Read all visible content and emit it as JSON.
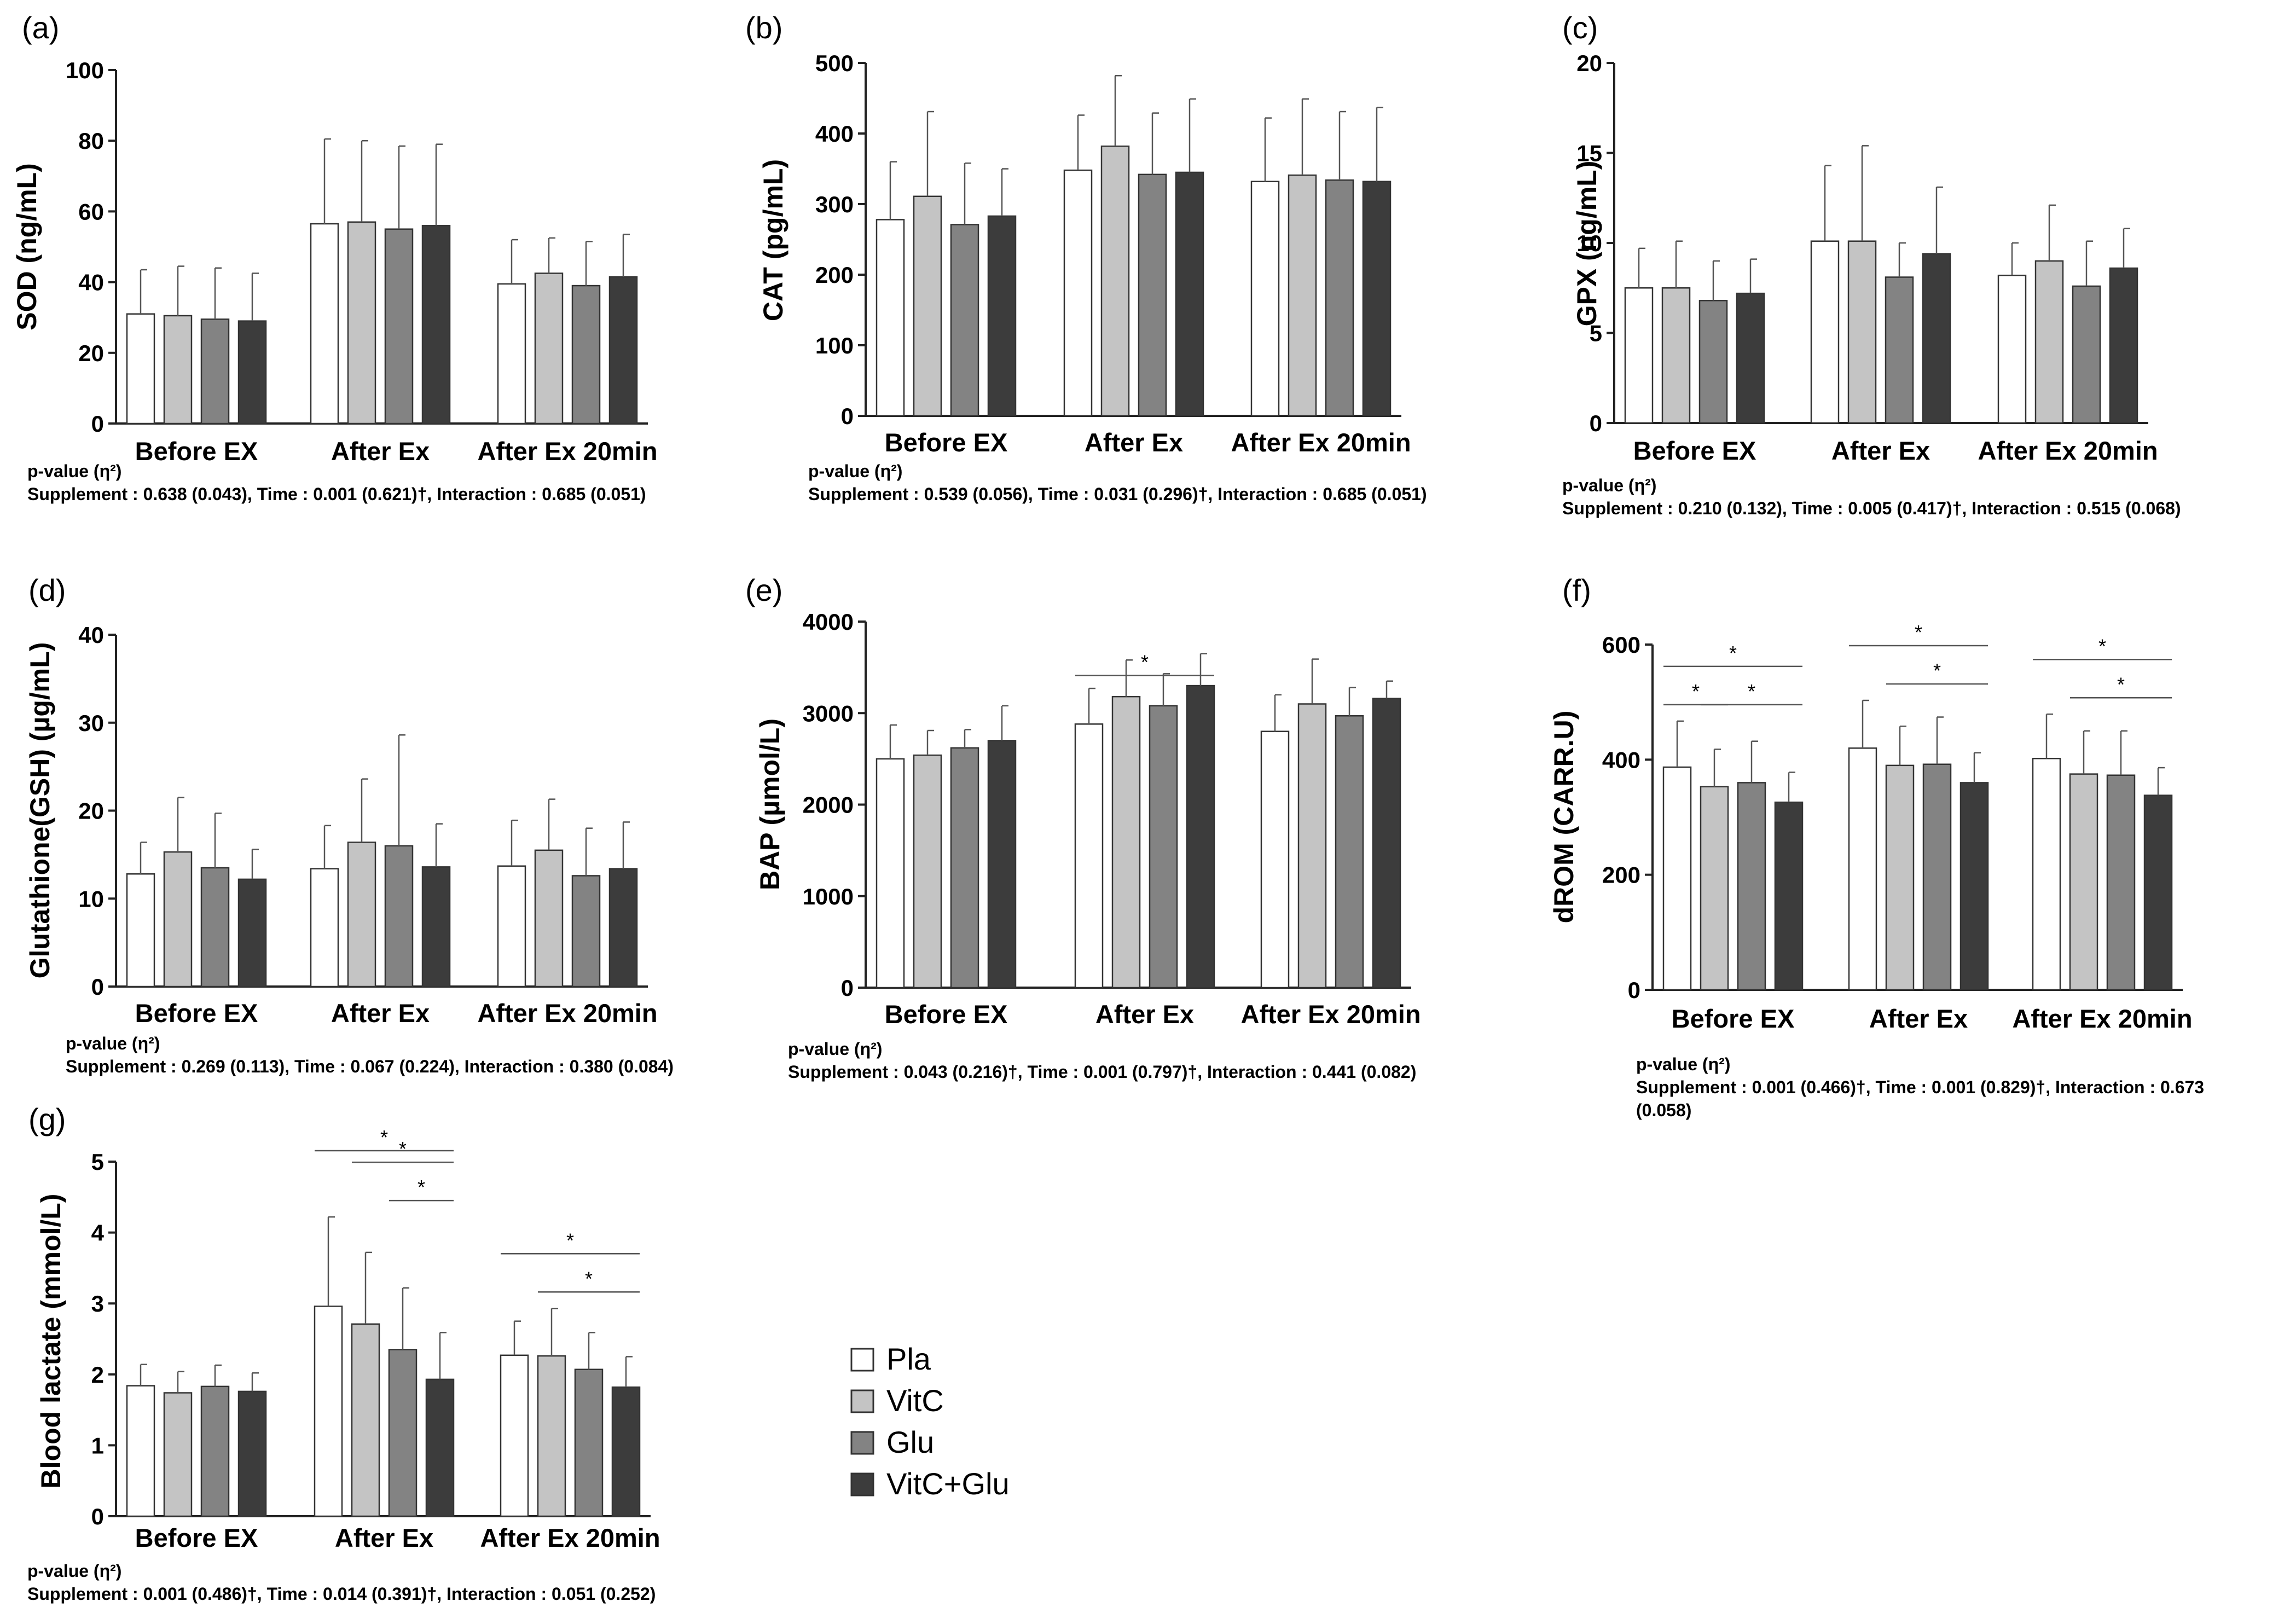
{
  "legend": [
    {
      "name": "Pla",
      "color": "#ffffff"
    },
    {
      "name": "VitC",
      "color": "#c4c4c4"
    },
    {
      "name": "Glu",
      "color": "#838383"
    },
    {
      "name": "VitC+Glu",
      "color": "#3c3c3c"
    }
  ],
  "chart_data": [
    {
      "id": "a",
      "letter": "(a)",
      "type": "bar",
      "ylabel": "SOD (ng/mL)",
      "ylim": [
        0,
        100
      ],
      "yticks": [
        "0",
        "20",
        "40",
        "60",
        "80",
        "100"
      ],
      "categories": [
        "Before EX",
        "After Ex",
        "After Ex 20min"
      ],
      "series": [
        {
          "name": "Pla",
          "values": [
            31,
            56.5,
            39.5
          ],
          "errors": [
            12.5,
            24,
            12.5
          ]
        },
        {
          "name": "VitC",
          "values": [
            30.5,
            57,
            42.5
          ],
          "errors": [
            14,
            23,
            10
          ]
        },
        {
          "name": "Glu",
          "values": [
            29.5,
            55,
            39
          ],
          "errors": [
            14.5,
            23.5,
            12.5
          ]
        },
        {
          "name": "VitC+Glu",
          "values": [
            29,
            56,
            41.5
          ],
          "errors": [
            13.5,
            23,
            12
          ]
        }
      ],
      "sig": [],
      "pvalue_title": "p-value (η²)",
      "pvalue_lines": [
        "Supplement : 0.638 (0.043), Time : 0.001 (0.621)†, Interaction : 0.685 (0.051)"
      ]
    },
    {
      "id": "b",
      "letter": "(b)",
      "type": "bar",
      "ylabel": "CAT (pg/mL)",
      "ylim": [
        0,
        500
      ],
      "yticks": [
        "0",
        "100",
        "200",
        "300",
        "400",
        "500"
      ],
      "categories": [
        "Before EX",
        "After Ex",
        "After Ex 20min"
      ],
      "series": [
        {
          "name": "Pla",
          "values": [
            278,
            348,
            332
          ],
          "errors": [
            82,
            78,
            90
          ]
        },
        {
          "name": "VitC",
          "values": [
            311,
            382,
            341
          ],
          "errors": [
            120,
            100,
            108
          ]
        },
        {
          "name": "Glu",
          "values": [
            271,
            342,
            334
          ],
          "errors": [
            87,
            87,
            97
          ]
        },
        {
          "name": "VitC+Glu",
          "values": [
            283,
            345,
            332
          ],
          "errors": [
            67,
            104,
            105
          ]
        }
      ],
      "sig": [],
      "pvalue_title": "p-value (η²)",
      "pvalue_lines": [
        "Supplement : 0.539 (0.056), Time : 0.031 (0.296)†, Interaction : 0.685 (0.051)"
      ]
    },
    {
      "id": "c",
      "letter": "(c)",
      "type": "bar",
      "ylabel": "GPX (ng/mL)",
      "ylim": [
        0,
        20
      ],
      "yticks": [
        "0",
        "5",
        "10",
        "15",
        "20"
      ],
      "categories": [
        "Before EX",
        "After Ex",
        "After Ex 20min"
      ],
      "series": [
        {
          "name": "Pla",
          "values": [
            7.5,
            10.1,
            8.2
          ],
          "errors": [
            2.2,
            4.2,
            1.8
          ]
        },
        {
          "name": "VitC",
          "values": [
            7.5,
            10.1,
            9.0
          ],
          "errors": [
            2.6,
            5.3,
            3.1
          ]
        },
        {
          "name": "Glu",
          "values": [
            6.8,
            8.1,
            7.6
          ],
          "errors": [
            2.2,
            1.9,
            2.5
          ]
        },
        {
          "name": "VitC+Glu",
          "values": [
            7.2,
            9.4,
            8.6
          ],
          "errors": [
            1.9,
            3.7,
            2.2
          ]
        }
      ],
      "sig": [],
      "pvalue_title": "p-value (η²)",
      "pvalue_lines": [
        "Supplement : 0.210 (0.132), Time : 0.005 (0.417)†, Interaction : 0.515 (0.068)"
      ]
    },
    {
      "id": "d",
      "letter": "(d)",
      "type": "bar",
      "ylabel": "Glutathione(GSH) (µg/mL)",
      "ylim": [
        0,
        40
      ],
      "yticks": [
        "0",
        "10",
        "20",
        "30",
        "40"
      ],
      "categories": [
        "Before EX",
        "After Ex",
        "After Ex 20min"
      ],
      "series": [
        {
          "name": "Pla",
          "values": [
            12.8,
            13.4,
            13.7
          ],
          "errors": [
            3.6,
            4.9,
            5.2
          ]
        },
        {
          "name": "VitC",
          "values": [
            15.3,
            16.4,
            15.5
          ],
          "errors": [
            6.2,
            7.2,
            5.8
          ]
        },
        {
          "name": "Glu",
          "values": [
            13.5,
            16.0,
            12.6
          ],
          "errors": [
            6.2,
            12.6,
            5.4
          ]
        },
        {
          "name": "VitC+Glu",
          "values": [
            12.2,
            13.6,
            13.4
          ],
          "errors": [
            3.4,
            4.9,
            5.3
          ]
        }
      ],
      "sig": [],
      "pvalue_title": "p-value (η²)",
      "pvalue_lines": [
        "Supplement : 0.269 (0.113), Time : 0.067 (0.224), Interaction : 0.380 (0.084)"
      ]
    },
    {
      "id": "e",
      "letter": "(e)",
      "type": "bar",
      "ylabel": "BAP (µmol/L)",
      "ylim": [
        0,
        4000
      ],
      "yticks": [
        "0",
        "1000",
        "2000",
        "3000",
        "4000"
      ],
      "categories": [
        "Before EX",
        "After Ex",
        "After Ex 20min"
      ],
      "series": [
        {
          "name": "Pla",
          "values": [
            2500,
            2880,
            2800
          ],
          "errors": [
            370,
            390,
            400
          ]
        },
        {
          "name": "VitC",
          "values": [
            2540,
            3180,
            3100
          ],
          "errors": [
            270,
            400,
            490
          ]
        },
        {
          "name": "Glu",
          "values": [
            2620,
            3080,
            2970
          ],
          "errors": [
            200,
            350,
            310
          ]
        },
        {
          "name": "VitC+Glu",
          "values": [
            2700,
            3300,
            3160
          ],
          "errors": [
            380,
            350,
            190
          ]
        }
      ],
      "sig": [
        {
          "group": 1,
          "from": 0,
          "to": 3,
          "level": 0,
          "label": "*"
        }
      ],
      "pvalue_title": "p-value (η²)",
      "pvalue_lines": [
        "Supplement : 0.043 (0.216)†, Time : 0.001 (0.797)†, Interaction : 0.441 (0.082)"
      ]
    },
    {
      "id": "f",
      "letter": "(f)",
      "type": "bar",
      "ylabel": "dROM (CARR.U)",
      "ylim": [
        0,
        600
      ],
      "yticks": [
        "0",
        "200",
        "400",
        "600"
      ],
      "categories": [
        "Before EX",
        "After Ex",
        "After Ex 20min"
      ],
      "series": [
        {
          "name": "Pla",
          "values": [
            387,
            420,
            402
          ],
          "errors": [
            80,
            83,
            77
          ]
        },
        {
          "name": "VitC",
          "values": [
            353,
            390,
            375
          ],
          "errors": [
            65,
            68,
            75
          ]
        },
        {
          "name": "Glu",
          "values": [
            360,
            392,
            373
          ],
          "errors": [
            72,
            82,
            77
          ]
        },
        {
          "name": "VitC+Glu",
          "values": [
            326,
            360,
            338
          ],
          "errors": [
            52,
            52,
            48
          ]
        }
      ],
      "sig": [
        {
          "group": 0,
          "from": 0,
          "to": 3,
          "level": 2,
          "label": "*"
        },
        {
          "group": 0,
          "from": 0,
          "to": 1,
          "level": 1,
          "label": "*"
        },
        {
          "group": 0,
          "from": 1,
          "to": 3,
          "level": 1,
          "label": "*"
        },
        {
          "group": 1,
          "from": 0,
          "to": 3,
          "level": 2,
          "label": "*"
        },
        {
          "group": 1,
          "from": 1,
          "to": 3,
          "level": 1,
          "label": "*"
        },
        {
          "group": 2,
          "from": 0,
          "to": 3,
          "level": 2,
          "label": "*"
        },
        {
          "group": 2,
          "from": 1,
          "to": 3,
          "level": 1,
          "label": "*"
        }
      ],
      "pvalue_title": "p-value (η²)",
      "pvalue_lines": [
        "Supplement : 0.001 (0.466)†, Time : 0.001 (0.829)†, Interaction : 0.673",
        "(0.058)"
      ]
    },
    {
      "id": "g",
      "letter": "(g)",
      "type": "bar",
      "ylabel": "Blood lactate (mmol/L)",
      "ylim": [
        0,
        5
      ],
      "yticks": [
        "0",
        "1",
        "2",
        "3",
        "4",
        "5"
      ],
      "categories": [
        "Before EX",
        "After Ex",
        "After Ex 20min"
      ],
      "series": [
        {
          "name": "Pla",
          "values": [
            1.84,
            2.96,
            2.27
          ],
          "errors": [
            0.3,
            1.26,
            0.48
          ]
        },
        {
          "name": "VitC",
          "values": [
            1.74,
            2.71,
            2.26
          ],
          "errors": [
            0.3,
            1.01,
            0.67
          ]
        },
        {
          "name": "Glu",
          "values": [
            1.83,
            2.35,
            2.07
          ],
          "errors": [
            0.3,
            0.87,
            0.52
          ]
        },
        {
          "name": "VitC+Glu",
          "values": [
            1.76,
            1.93,
            1.82
          ],
          "errors": [
            0.26,
            0.66,
            0.43
          ]
        }
      ],
      "sig": [
        {
          "group": 1,
          "from": 0,
          "to": 3,
          "level": 3,
          "label": "*"
        },
        {
          "group": 1,
          "from": 1,
          "to": 3,
          "level": 2,
          "label": "*"
        },
        {
          "group": 1,
          "from": 2,
          "to": 3,
          "level": 1,
          "label": "*"
        },
        {
          "group": 2,
          "from": 0,
          "to": 3,
          "level": 2,
          "label": "*"
        },
        {
          "group": 2,
          "from": 1,
          "to": 3,
          "level": 1,
          "label": "*"
        }
      ],
      "pvalue_title": "p-value (η²)",
      "pvalue_lines": [
        "Supplement : 0.001 (0.486)†, Time : 0.014 (0.391)†, Interaction : 0.051 (0.252)"
      ]
    }
  ]
}
